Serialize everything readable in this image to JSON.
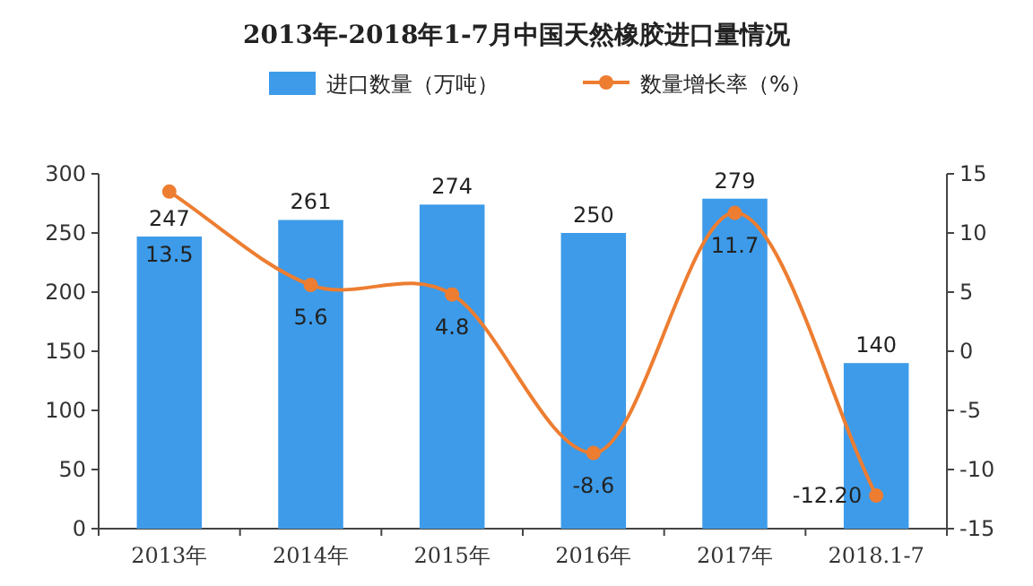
{
  "chart_data": {
    "type": "bar",
    "title": "2013年-2018年1-7月中国天然橡胶进口量情况",
    "categories": [
      "2013年",
      "2014年",
      "2015年",
      "2016年",
      "2017年",
      "2018.1-7"
    ],
    "series": [
      {
        "name": "进口数量（万吨）",
        "type": "bar",
        "color": "#3d9be9",
        "values": [
          247,
          261,
          274,
          250,
          279,
          140
        ],
        "value_labels": [
          "247",
          "261",
          "274",
          "250",
          "279",
          "140"
        ]
      },
      {
        "name": "数量增长率（%）",
        "type": "line",
        "axis": "y2",
        "color": "#ed7d31",
        "marker": "circle",
        "values": [
          13.5,
          5.6,
          4.8,
          -8.6,
          11.7,
          -12.2
        ],
        "value_labels": [
          "13.5",
          "5.6",
          "4.8",
          "-8.6",
          "11.7",
          "-12.20"
        ]
      }
    ],
    "ylim": [
      0,
      300
    ],
    "yticks": [
      0,
      50,
      100,
      150,
      200,
      250,
      300
    ],
    "y2lim": [
      -15,
      15
    ],
    "y2ticks": [
      -15,
      -10,
      -5,
      0,
      5,
      10,
      15
    ],
    "legend": "top"
  }
}
